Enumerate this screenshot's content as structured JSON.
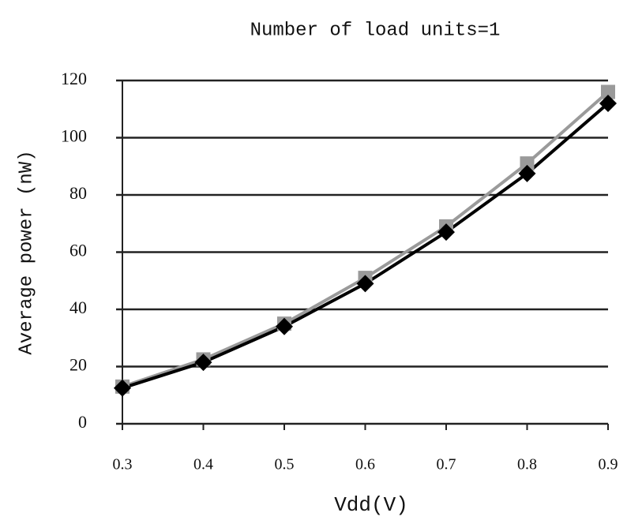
{
  "chart_data": {
    "type": "line",
    "title": "Number of load units=1",
    "x_label": "Vdd(V)",
    "y_label": "Average power (nW)",
    "x": [
      0.3,
      0.4,
      0.5,
      0.6,
      0.7,
      0.8,
      0.9
    ],
    "series": [
      {
        "color": "#9a9a9a",
        "marker": "square",
        "values": [
          13,
          22.5,
          35,
          51,
          69,
          91,
          116
        ]
      },
      {
        "color": "#000000",
        "marker": "diamond",
        "values": [
          12.5,
          21.5,
          34,
          49,
          67,
          87.5,
          112
        ]
      }
    ],
    "xlim": [
      0.3,
      0.9
    ],
    "xticks": [
      0.3,
      0.4,
      0.5,
      0.6,
      0.7,
      0.8,
      0.9
    ],
    "ylim": [
      0,
      120
    ],
    "yticks": [
      0,
      20,
      40,
      60,
      80,
      100,
      120
    ],
    "grid": true
  }
}
